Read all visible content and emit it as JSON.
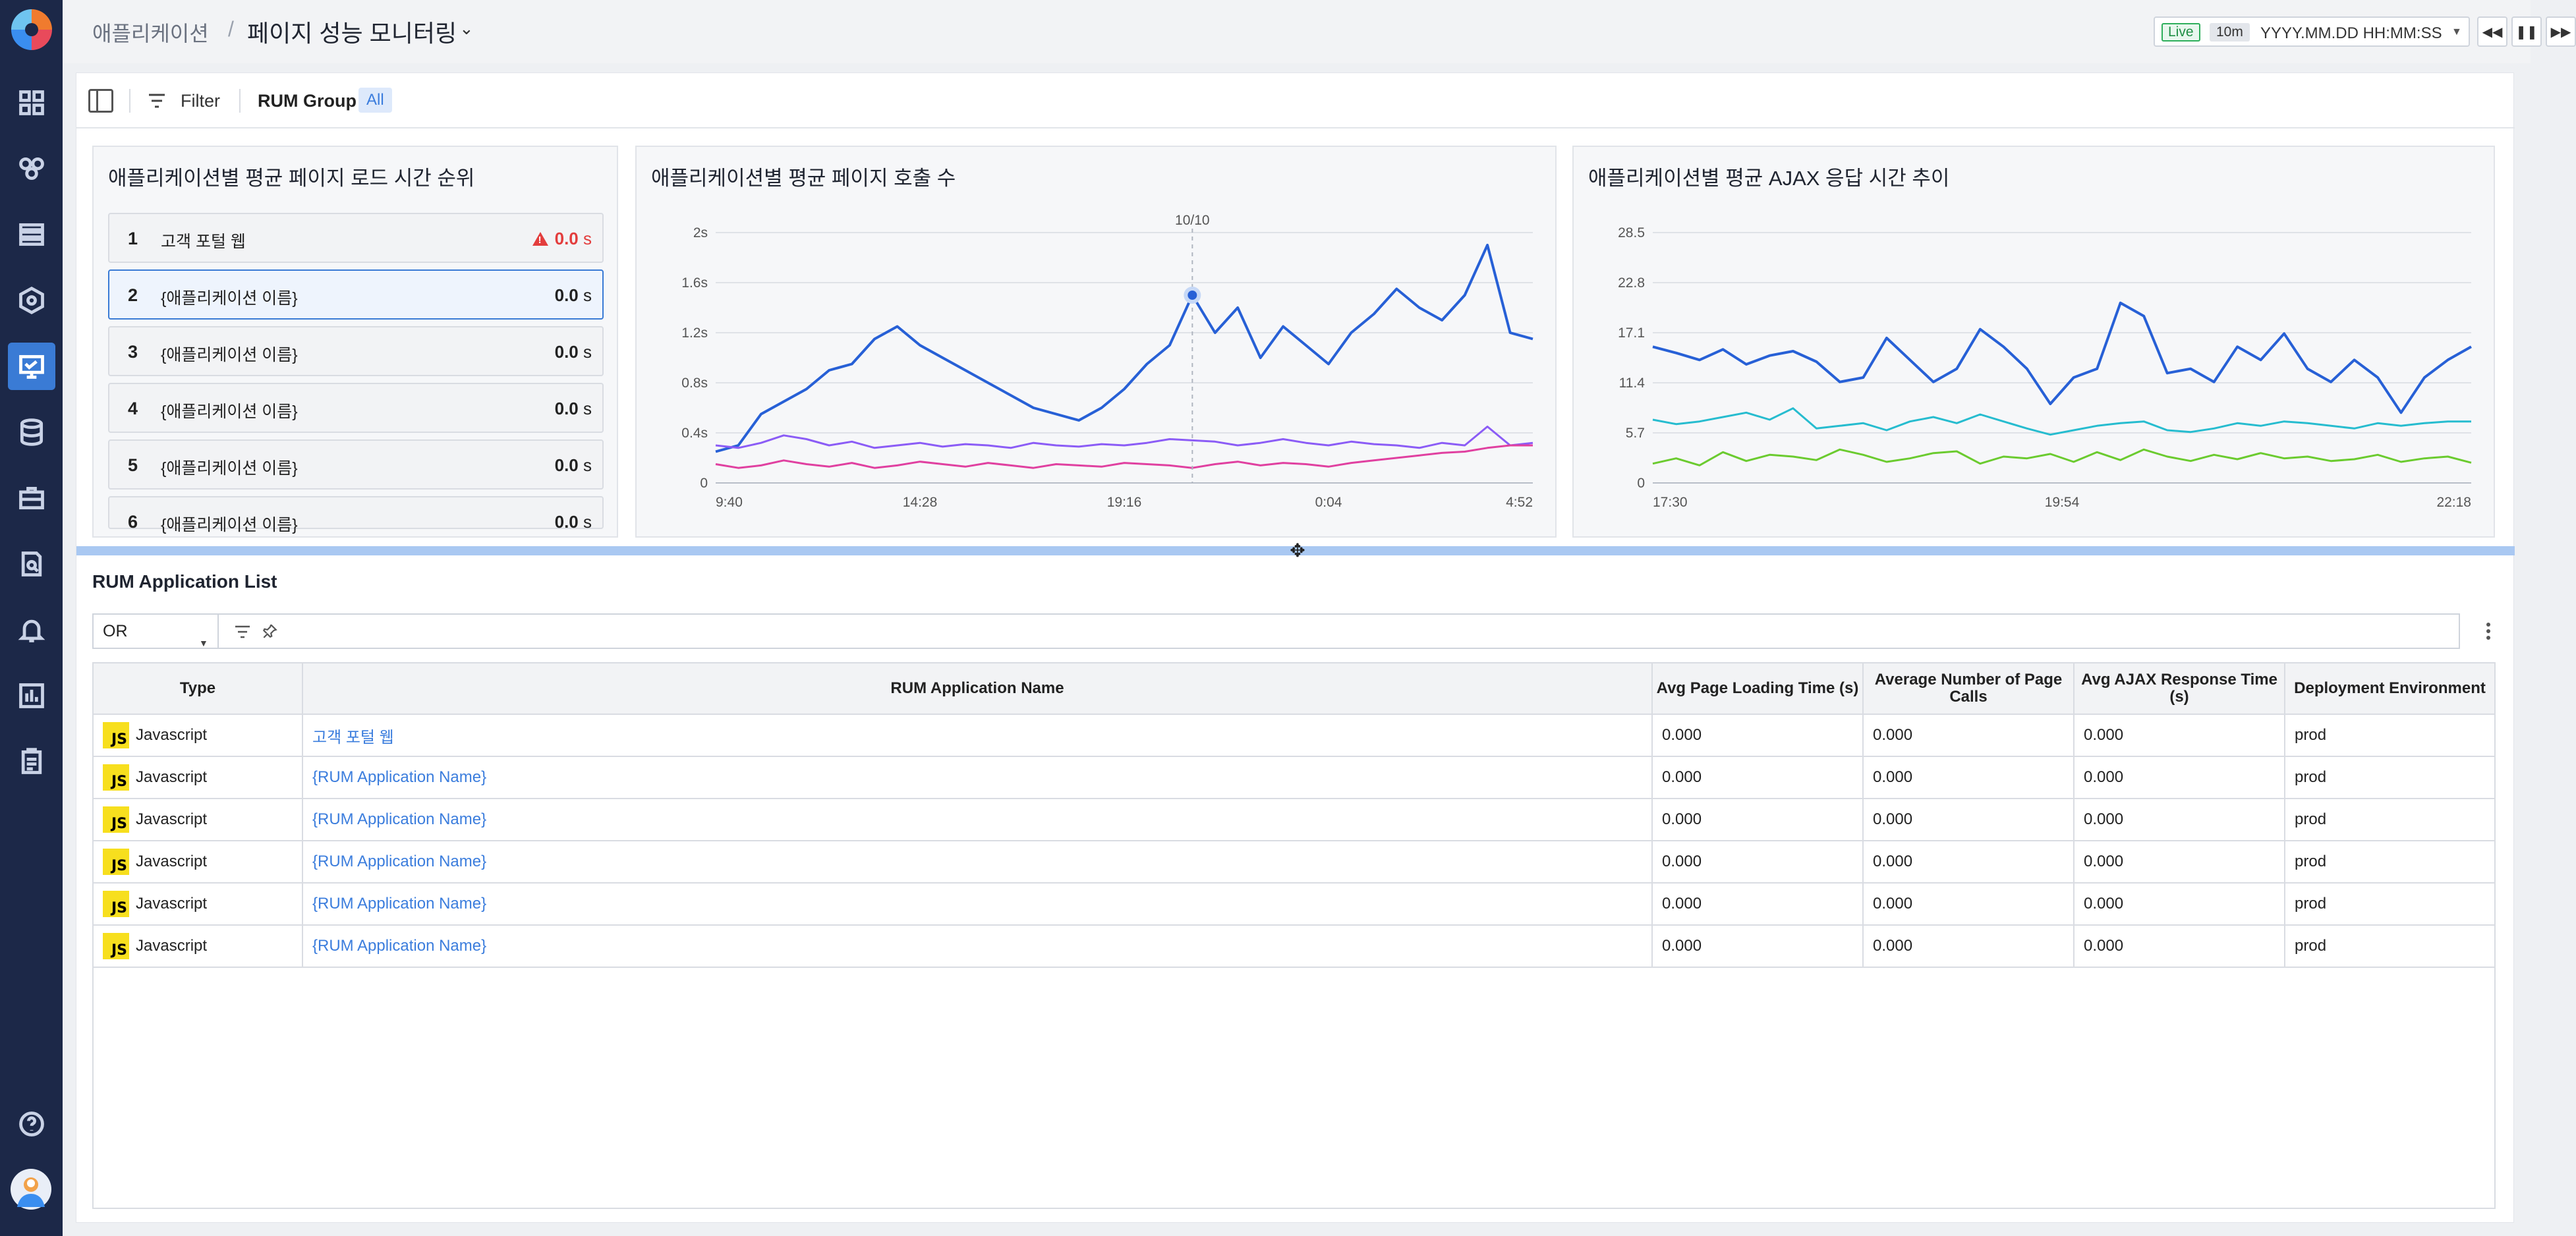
{
  "header": {
    "breadcrumb": "애플리케이션",
    "separator": "/",
    "title": "페이지 성능 모니터링",
    "live": "Live",
    "range": "10m",
    "time_placeholder": "YYYY.MM.DD HH:MM:SS"
  },
  "toolbar": {
    "filter_label": "Filter",
    "group_label": "RUM Group",
    "group_value": "All"
  },
  "ranking": {
    "title": "애플리케이션별 평균 페이지 로드 시간 순위",
    "unit": "s",
    "items": [
      {
        "rank": "1",
        "name": "고객 포털 웹",
        "value": "0.0",
        "alert": true
      },
      {
        "rank": "2",
        "name": "{애플리케이션 이름}",
        "value": "0.0",
        "alert": false
      },
      {
        "rank": "3",
        "name": "{애플리케이션 이름}",
        "value": "0.0",
        "alert": false
      },
      {
        "rank": "4",
        "name": "{애플리케이션 이름}",
        "value": "0.0",
        "alert": false
      },
      {
        "rank": "5",
        "name": "{애플리케이션 이름}",
        "value": "0.0",
        "alert": false
      },
      {
        "rank": "6",
        "name": "{애플리케이션 이름}",
        "value": "0.0",
        "alert": false
      }
    ]
  },
  "chart_data": [
    {
      "type": "line",
      "title": "애플리케이션별 평균 페이지 호출 수",
      "yticks": [
        "0",
        "0.4s",
        "0.8s",
        "1.2s",
        "1.6s",
        "2s"
      ],
      "xticks": [
        "9:40",
        "14:28",
        "19:16",
        "0:04",
        "4:52"
      ],
      "ylim": [
        0,
        2
      ],
      "cursor_label": "10/10",
      "grid": true,
      "series": [
        {
          "color": "#2760d6",
          "values": [
            0.25,
            0.3,
            0.55,
            0.65,
            0.75,
            0.9,
            0.95,
            1.15,
            1.25,
            1.1,
            1.0,
            0.9,
            0.8,
            0.7,
            0.6,
            0.55,
            0.5,
            0.6,
            0.75,
            0.95,
            1.1,
            1.5,
            1.2,
            1.4,
            1.0,
            1.25,
            1.1,
            0.95,
            1.2,
            1.35,
            1.55,
            1.4,
            1.3,
            1.5,
            1.9,
            1.2,
            1.15
          ]
        },
        {
          "color": "#8b5cf6",
          "values": [
            0.3,
            0.28,
            0.32,
            0.38,
            0.35,
            0.3,
            0.33,
            0.28,
            0.3,
            0.32,
            0.29,
            0.31,
            0.3,
            0.28,
            0.32,
            0.3,
            0.29,
            0.31,
            0.3,
            0.32,
            0.35,
            0.34,
            0.33,
            0.3,
            0.32,
            0.35,
            0.32,
            0.3,
            0.33,
            0.31,
            0.3,
            0.28,
            0.32,
            0.3,
            0.45,
            0.3,
            0.32
          ]
        },
        {
          "color": "#e040a0",
          "values": [
            0.15,
            0.12,
            0.14,
            0.18,
            0.15,
            0.13,
            0.16,
            0.12,
            0.14,
            0.17,
            0.15,
            0.13,
            0.16,
            0.14,
            0.12,
            0.15,
            0.14,
            0.13,
            0.16,
            0.15,
            0.14,
            0.12,
            0.15,
            0.17,
            0.14,
            0.16,
            0.15,
            0.13,
            0.16,
            0.18,
            0.2,
            0.22,
            0.24,
            0.25,
            0.28,
            0.3,
            0.3
          ]
        }
      ]
    },
    {
      "type": "line",
      "title": "애플리케이션별 평균 AJAX 응답 시간 추이",
      "yticks": [
        "0",
        "5.7",
        "11.4",
        "17.1",
        "22.8",
        "28.5"
      ],
      "xticks": [
        "17:30",
        "19:54",
        "22:18"
      ],
      "ylim": [
        0,
        28.5
      ],
      "grid": true,
      "series": [
        {
          "color": "#2760d6",
          "values": [
            15.5,
            14.8,
            14.0,
            15.2,
            13.5,
            14.5,
            15.0,
            13.8,
            11.5,
            12.0,
            16.5,
            14.0,
            11.5,
            13.0,
            17.5,
            15.5,
            13.0,
            9.0,
            12.0,
            13.0,
            20.5,
            19.0,
            12.5,
            13.0,
            11.5,
            15.5,
            14.0,
            17.0,
            13.0,
            11.5,
            14.0,
            12.0,
            8.0,
            12.0,
            14.0,
            15.5
          ]
        },
        {
          "color": "#26bccf",
          "values": [
            7.2,
            6.7,
            7.0,
            7.5,
            8.0,
            7.2,
            8.5,
            6.2,
            6.5,
            6.8,
            6.0,
            7.0,
            7.5,
            6.8,
            7.8,
            7.0,
            6.2,
            5.5,
            6.0,
            6.5,
            6.8,
            7.0,
            6.0,
            5.8,
            6.2,
            6.8,
            6.5,
            7.0,
            6.8,
            6.5,
            6.2,
            6.8,
            6.5,
            6.8,
            7.0,
            7.0
          ]
        },
        {
          "color": "#6bcb2f",
          "values": [
            2.2,
            2.8,
            2.0,
            3.5,
            2.5,
            3.2,
            3.0,
            2.6,
            3.8,
            3.2,
            2.4,
            2.8,
            3.4,
            3.6,
            2.2,
            3.0,
            2.8,
            3.3,
            2.4,
            3.5,
            2.6,
            3.8,
            3.0,
            2.5,
            3.2,
            2.7,
            3.4,
            2.8,
            3.0,
            2.5,
            2.7,
            3.2,
            2.4,
            2.8,
            3.0,
            2.3
          ]
        }
      ]
    }
  ],
  "list": {
    "title": "RUM Application List",
    "operator": "OR",
    "columns": [
      "Type",
      "RUM Application Name",
      "Avg Page Loading Time (s)",
      "Average Number of Page Calls",
      "Avg AJAX Response Time (s)",
      "Deployment Environment"
    ],
    "rows": [
      {
        "type": "Javascript",
        "name": "고객 포털 웹",
        "load": "0.000",
        "calls": "0.000",
        "ajax": "0.000",
        "env": "prod"
      },
      {
        "type": "Javascript",
        "name": "{RUM Application Name}",
        "load": "0.000",
        "calls": "0.000",
        "ajax": "0.000",
        "env": "prod"
      },
      {
        "type": "Javascript",
        "name": "{RUM Application Name}",
        "load": "0.000",
        "calls": "0.000",
        "ajax": "0.000",
        "env": "prod"
      },
      {
        "type": "Javascript",
        "name": "{RUM Application Name}",
        "load": "0.000",
        "calls": "0.000",
        "ajax": "0.000",
        "env": "prod"
      },
      {
        "type": "Javascript",
        "name": "{RUM Application Name}",
        "load": "0.000",
        "calls": "0.000",
        "ajax": "0.000",
        "env": "prod"
      },
      {
        "type": "Javascript",
        "name": "{RUM Application Name}",
        "load": "0.000",
        "calls": "0.000",
        "ajax": "0.000",
        "env": "prod"
      }
    ],
    "js_badge": "JS"
  },
  "icons": {
    "accent": "#3a7bd5",
    "rail": [
      "dashboard-icon",
      "topology-icon",
      "server-stack-icon",
      "kubernetes-icon",
      "application-monitor-icon",
      "database-icon",
      "briefcase-icon",
      "log-search-icon",
      "alert-bell-icon",
      "report-icon",
      "clipboard-icon",
      "help-icon"
    ]
  }
}
